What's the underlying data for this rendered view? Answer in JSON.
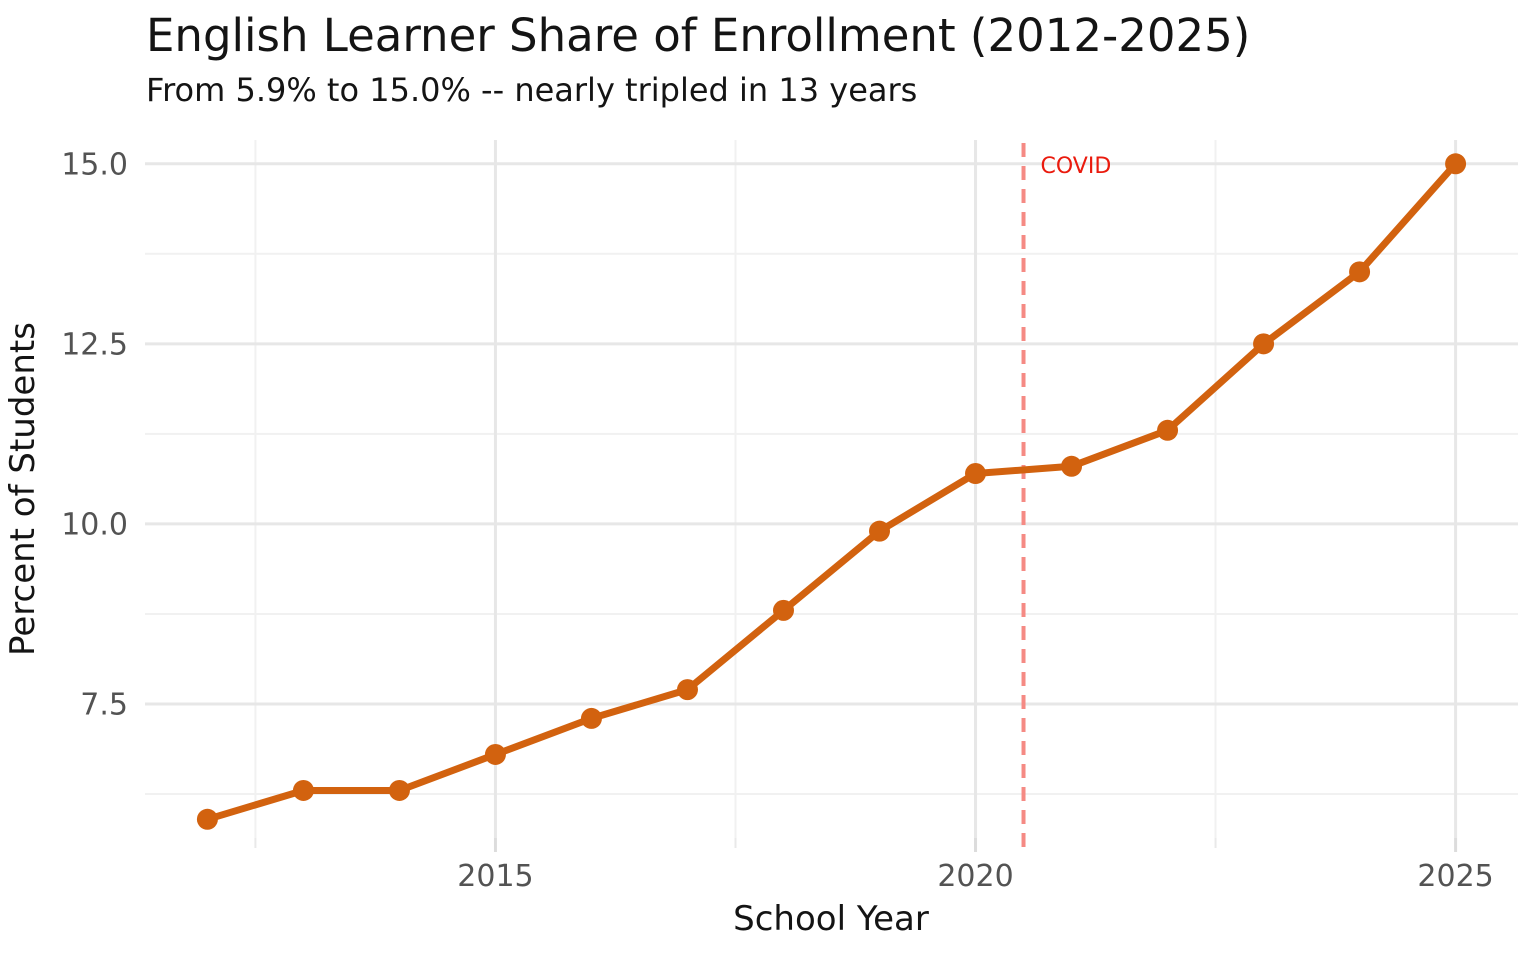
{
  "title": "English Learner Share of Enrollment (2012-2025)",
  "subtitle": "From 5.9% to 15.0% -- nearly tripled in 13 years",
  "chart_data": {
    "type": "line",
    "title": "English Learner Share of Enrollment (2012-2025)",
    "subtitle": "From 5.9% to 15.0% -- nearly tripled in 13 years",
    "xlabel": "School Year",
    "ylabel": "Percent of Students",
    "x": [
      2012,
      2013,
      2014,
      2015,
      2016,
      2017,
      2018,
      2019,
      2020,
      2021,
      2022,
      2023,
      2024,
      2025
    ],
    "values": [
      5.9,
      6.3,
      6.3,
      6.8,
      7.3,
      7.7,
      8.8,
      9.9,
      10.7,
      10.8,
      11.3,
      12.5,
      13.5,
      15.0
    ],
    "xlim": [
      2011.35,
      2025.65
    ],
    "ylim": [
      5.64,
      15.33
    ],
    "x_ticks": [
      2015,
      2020,
      2025
    ],
    "x_tick_labels": [
      "2015",
      "2020",
      "2025"
    ],
    "x_minor_ticks": [
      2012.5,
      2017.5,
      2022.5
    ],
    "y_ticks": [
      7.5,
      10.0,
      12.5,
      15.0
    ],
    "y_tick_labels": [
      "7.5",
      "10.0",
      "12.5",
      "15.0"
    ],
    "y_minor_ticks": [
      6.25,
      8.75,
      11.25,
      13.75
    ],
    "grid": true,
    "legend": false,
    "line_color": "#d2620f",
    "point_color": "#d2620f",
    "annotation": {
      "label": "COVID",
      "x": 2020.5,
      "text_color": "#ea1a0d",
      "line_color": "#f58a84"
    }
  }
}
